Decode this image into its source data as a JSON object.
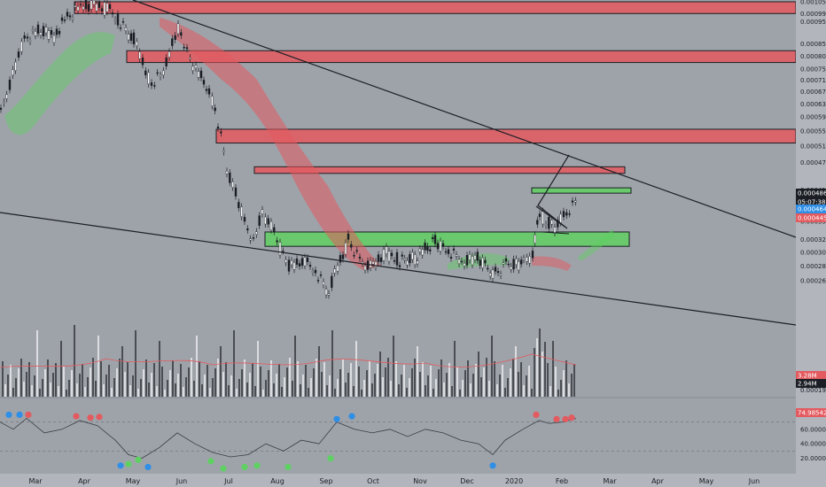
{
  "chart_data": [
    {
      "type": "candlestick",
      "panel": "price",
      "scale": "log",
      "ylim": [
        0.000235,
        0.00105
      ],
      "x_labels": [
        "Mar",
        "Apr",
        "May",
        "Jun",
        "Jul",
        "Aug",
        "Sep",
        "Oct",
        "Nov",
        "Dec",
        "2020",
        "Feb",
        "Mar",
        "Apr",
        "May",
        "Jun"
      ],
      "y_ticks": [
        "0.0010500",
        "0.0009900",
        "0.0009500",
        "0.0008500",
        "0.0008000",
        "0.0007500",
        "0.0007100",
        "0.0006700",
        "0.0006300",
        "0.0005900",
        "0.0005500",
        "0.0005100",
        "0.0004700",
        "0.0004100",
        "0.0003800",
        "0.0003500",
        "0.0003200",
        "0.0003000",
        "0.0002800",
        "0.0002600"
      ],
      "badges": {
        "last_price": "0.0004862",
        "countdown": "05:07:38",
        "level_a": "0.0004649",
        "level_b": "0.0004450"
      },
      "zones": [
        {
          "type": "resistance",
          "y_top": 0.00105,
          "y_bottom": 0.00099
        },
        {
          "type": "resistance",
          "y_top": 0.000822,
          "y_bottom": 0.000775
        },
        {
          "type": "resistance",
          "y_top": 0.000555,
          "y_bottom": 0.000518
        },
        {
          "type": "resistance",
          "y_top": 0.00046,
          "y_bottom": 0.000445
        },
        {
          "type": "support",
          "y_top": 0.000414,
          "y_bottom": 0.000404
        },
        {
          "type": "support",
          "y_top": 0.000332,
          "y_bottom": 0.000309
        }
      ],
      "colors": {
        "resistance": "#e35a5f",
        "support": "#5fd062",
        "up": "#ffffff",
        "down": "#1b1e24"
      }
    },
    {
      "type": "bar",
      "panel": "volume",
      "badges": {
        "volume_a": "3.28M",
        "volume_b": "2.94M"
      }
    },
    {
      "type": "line",
      "panel": "oscillator",
      "ylim": [
        0,
        100
      ],
      "y_ticks": [
        "60.000000",
        "40.000000",
        "20.000000"
      ],
      "badges": {
        "last_value": "74.9854207"
      }
    }
  ]
}
